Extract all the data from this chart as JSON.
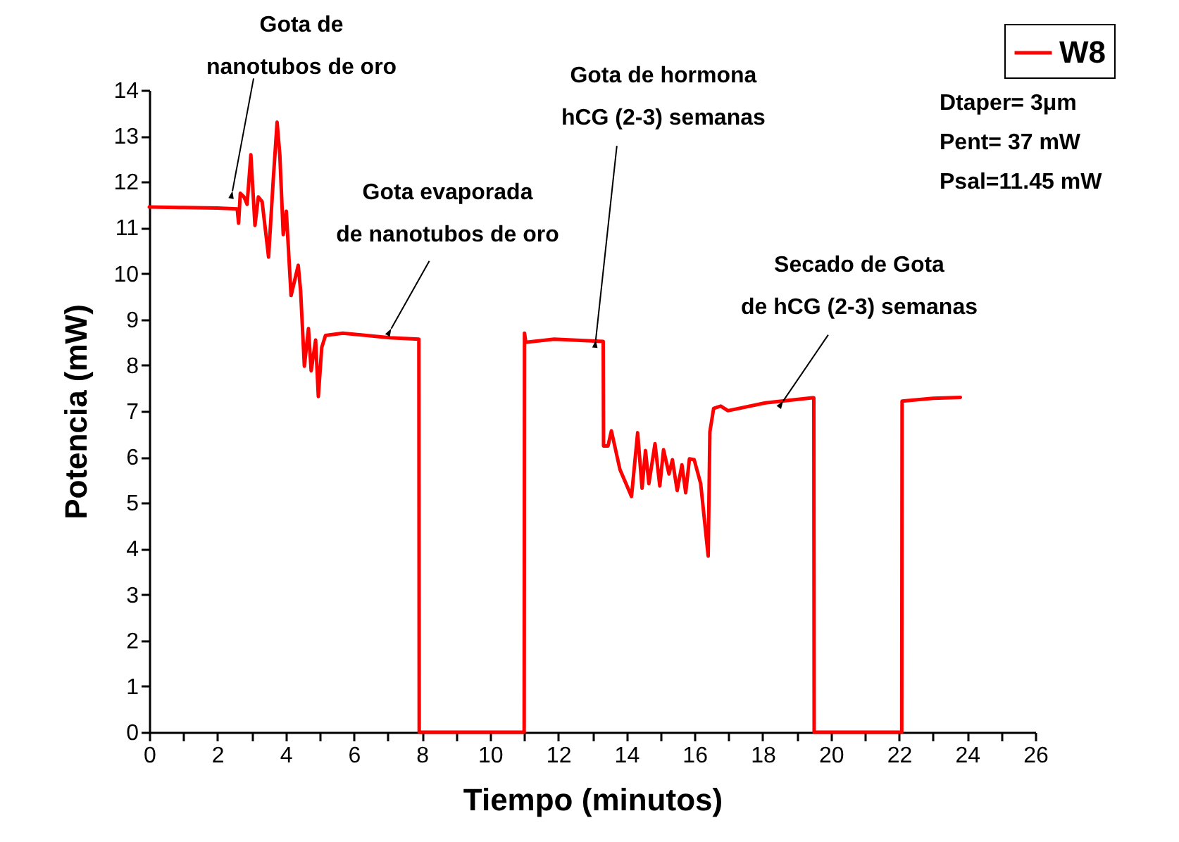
{
  "chart_data": {
    "type": "line",
    "xlabel": "Tiempo (minutos)",
    "ylabel": "Potencia (mW)",
    "xlim": [
      0,
      26
    ],
    "ylim": [
      0,
      14
    ],
    "xticks": [
      0,
      {
        "value": 1,
        "label": null
      },
      2,
      {
        "value": 3,
        "label": null
      },
      4,
      {
        "value": 5,
        "label": null
      },
      6,
      {
        "value": 7,
        "label": null
      },
      8,
      {
        "value": 9,
        "label": null
      },
      10,
      {
        "value": 11,
        "label": null
      },
      12,
      {
        "value": 13,
        "label": null
      },
      14,
      {
        "value": 15,
        "label": null
      },
      16,
      {
        "value": 17,
        "label": null
      },
      18,
      {
        "value": 19,
        "label": null
      },
      20,
      {
        "value": 21,
        "label": null
      },
      22,
      {
        "value": 23,
        "label": null
      },
      24,
      {
        "value": 25,
        "label": null
      },
      26
    ],
    "yticks": [
      0,
      1,
      2,
      3,
      4,
      5,
      6,
      7,
      8,
      9,
      10,
      11,
      12,
      13,
      14
    ],
    "grid": false,
    "legend": "top right",
    "marker": "none",
    "line_style": "solid",
    "series": [
      {
        "name": "W8",
        "color": "#ff0000",
        "x": [
          0,
          1,
          2,
          2.58,
          2.62,
          2.67,
          2.78,
          2.87,
          2.98,
          3.1,
          3.2,
          3.31,
          3.5,
          3.64,
          3.75,
          3.83,
          3.93,
          4.02,
          4.16,
          4.37,
          4.44,
          4.55,
          4.67,
          4.75,
          4.88,
          4.96,
          5.06,
          5.17,
          5.68,
          7.06,
          7.91,
          7.92,
          11.0,
          11.01,
          11.05,
          11.88,
          13.32,
          13.33,
          13.46,
          13.56,
          13.81,
          14.15,
          14.33,
          14.46,
          14.56,
          14.66,
          14.84,
          14.98,
          15.09,
          15.25,
          15.35,
          15.49,
          15.63,
          15.74,
          15.85,
          15.99,
          16.18,
          16.4,
          16.45,
          16.56,
          16.77,
          16.98,
          18.08,
          19.46,
          19.5,
          19.51,
          22.08,
          22.09,
          23.0,
          23.8
        ],
        "values": [
          11.45,
          11.44,
          11.43,
          11.41,
          11.1,
          11.75,
          11.67,
          11.51,
          12.59,
          11.05,
          11.67,
          11.57,
          10.36,
          12.08,
          13.3,
          12.59,
          10.85,
          11.36,
          9.52,
          10.18,
          9.62,
          7.98,
          8.8,
          7.88,
          8.55,
          7.32,
          8.39,
          8.65,
          8.7,
          8.6,
          8.57,
          0,
          0,
          8.7,
          8.5,
          8.57,
          8.52,
          6.24,
          6.24,
          6.57,
          5.73,
          5.14,
          6.53,
          5.32,
          6.14,
          5.42,
          6.29,
          5.37,
          6.16,
          5.63,
          5.94,
          5.27,
          5.83,
          5.22,
          5.96,
          5.94,
          5.42,
          3.84,
          6.55,
          7.06,
          7.11,
          7.01,
          7.18,
          7.29,
          7.29,
          0,
          0,
          7.22,
          7.28,
          7.3
        ]
      }
    ],
    "annotations": [
      {
        "text": "Gota de\nnanotubos de oro",
        "x": 2.44,
        "y": 11.8
      },
      {
        "text": "Gota evaporada\nde nanotubos de oro",
        "x": 7.1,
        "y": 8.8
      },
      {
        "text": "Gota de hormona\nhCG (2-3) semanas",
        "x": 13.1,
        "y": 8.55
      },
      {
        "text": "Secado de Gota\nde hCG (2-3) semanas",
        "x": 18.6,
        "y": 7.22
      },
      "Dtaper= 3μm",
      "Pent= 37 mW",
      "Psal=11.45 mW"
    ]
  }
}
